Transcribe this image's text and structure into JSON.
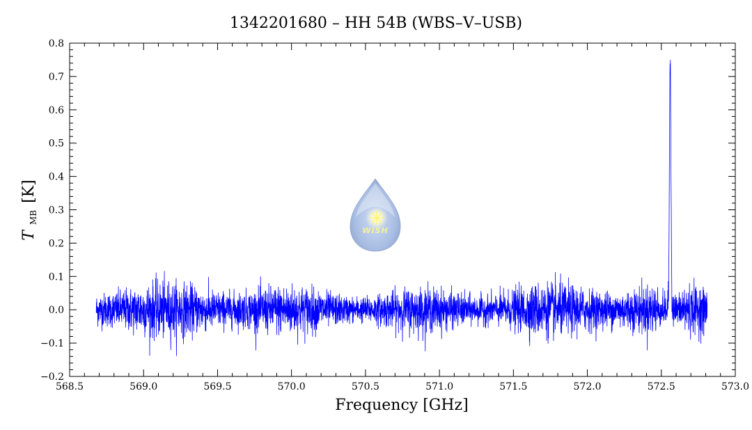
{
  "chart_data": {
    "type": "line",
    "title": "1342201680 – HH 54B (WBS–V–USB)",
    "xlabel": "Frequency [GHz]",
    "ylabel": {
      "symbol": "T",
      "subscript": "MB",
      "unit": "[K]"
    },
    "xlim": [
      568.5,
      573.0
    ],
    "ylim": [
      -0.2,
      0.8
    ],
    "xticks": [
      568.5,
      569.0,
      569.5,
      570.0,
      570.5,
      571.0,
      571.5,
      572.0,
      572.5,
      573.0
    ],
    "xtick_labels": [
      "568.5",
      "569.0",
      "569.5",
      "570.0",
      "570.5",
      "571.0",
      "571.5",
      "572.0",
      "572.5",
      "573.0"
    ],
    "yticks": [
      -0.2,
      -0.1,
      0.0,
      0.1,
      0.2,
      0.3,
      0.4,
      0.5,
      0.6,
      0.7,
      0.8
    ],
    "ytick_labels": [
      "−0.2",
      "−0.1",
      "0.0",
      "0.1",
      "0.2",
      "0.3",
      "0.4",
      "0.5",
      "0.6",
      "0.7",
      "0.8"
    ],
    "grid": false,
    "line_color": "#0000ff",
    "series": [
      {
        "x_range": [
          568.68,
          572.81
        ],
        "baseline": 0.0,
        "noise_rms": 0.03,
        "line": {
          "center": 572.56,
          "peak": 0.76,
          "fwhm": 0.012
        }
      }
    ]
  },
  "logo": {
    "text": "WISH",
    "icon": "wish-droplet-logo"
  },
  "colors": {
    "spectrum": "#0000ff",
    "axes": "#000000",
    "logo": "#9fb4dc"
  }
}
